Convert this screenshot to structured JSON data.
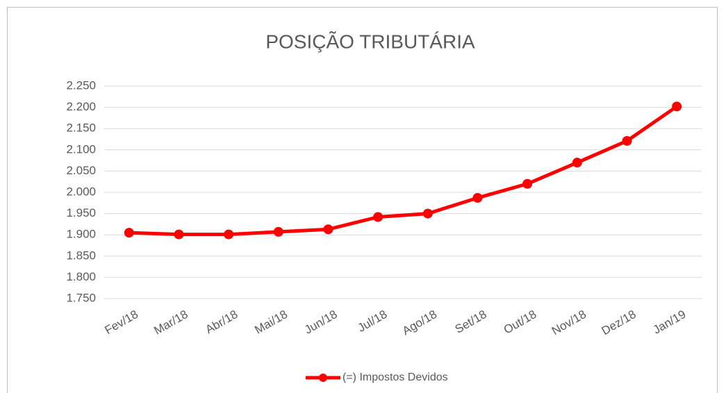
{
  "chart_data": {
    "type": "line",
    "title": "POSIÇÃO TRIBUTÁRIA",
    "categories": [
      "Fev/18",
      "Mar/18",
      "Abr/18",
      "Mai/18",
      "Jun/18",
      "Jul/18",
      "Ago/18",
      "Set/18",
      "Out/18",
      "Nov/18",
      "Dez/18",
      "Jan/19"
    ],
    "series": [
      {
        "name": "(=) Impostos Devidos",
        "color": "#ff0000",
        "values": [
          1905,
          1901,
          1901,
          1907,
          1913,
          1942,
          1950,
          1987,
          2020,
          2070,
          2121,
          2202
        ]
      }
    ],
    "ylim": [
      1750,
      2250
    ],
    "yticks": [
      {
        "value": 1750,
        "label": "1.750"
      },
      {
        "value": 1800,
        "label": "1.800"
      },
      {
        "value": 1850,
        "label": "1.850"
      },
      {
        "value": 1900,
        "label": "1.900"
      },
      {
        "value": 1950,
        "label": "1.950"
      },
      {
        "value": 2000,
        "label": "2.000"
      },
      {
        "value": 2050,
        "label": "2.050"
      },
      {
        "value": 2100,
        "label": "2.100"
      },
      {
        "value": 2150,
        "label": "2.150"
      },
      {
        "value": 2200,
        "label": "2.200"
      },
      {
        "value": 2250,
        "label": "2.250"
      }
    ],
    "grid": true,
    "legend": "bottom"
  }
}
